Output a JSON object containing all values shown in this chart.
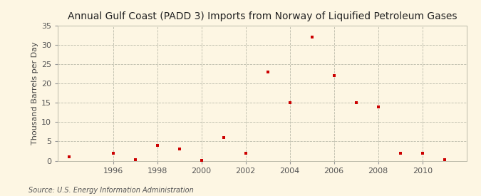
{
  "title": "Annual Gulf Coast (PADD 3) Imports from Norway of Liquified Petroleum Gases",
  "ylabel": "Thousand Barrels per Day",
  "source": "Source: U.S. Energy Information Administration",
  "background_color": "#fdf6e3",
  "plot_bg_color": "#fdf6e3",
  "marker_color": "#cc0000",
  "years": [
    1994,
    1996,
    1997,
    1998,
    1999,
    2000,
    2001,
    2002,
    2003,
    2004,
    2005,
    2006,
    2007,
    2008,
    2009,
    2010,
    2011
  ],
  "values": [
    1,
    2,
    0.2,
    4,
    3,
    0.1,
    6,
    2,
    23,
    15,
    32,
    22,
    15,
    14,
    2,
    2,
    0.2
  ],
  "xlim": [
    1993.5,
    2012
  ],
  "ylim": [
    0,
    35
  ],
  "yticks": [
    0,
    5,
    10,
    15,
    20,
    25,
    30,
    35
  ],
  "xticks": [
    1996,
    1998,
    2000,
    2002,
    2004,
    2006,
    2008,
    2010
  ],
  "title_fontsize": 10,
  "label_fontsize": 8,
  "tick_fontsize": 8,
  "source_fontsize": 7
}
